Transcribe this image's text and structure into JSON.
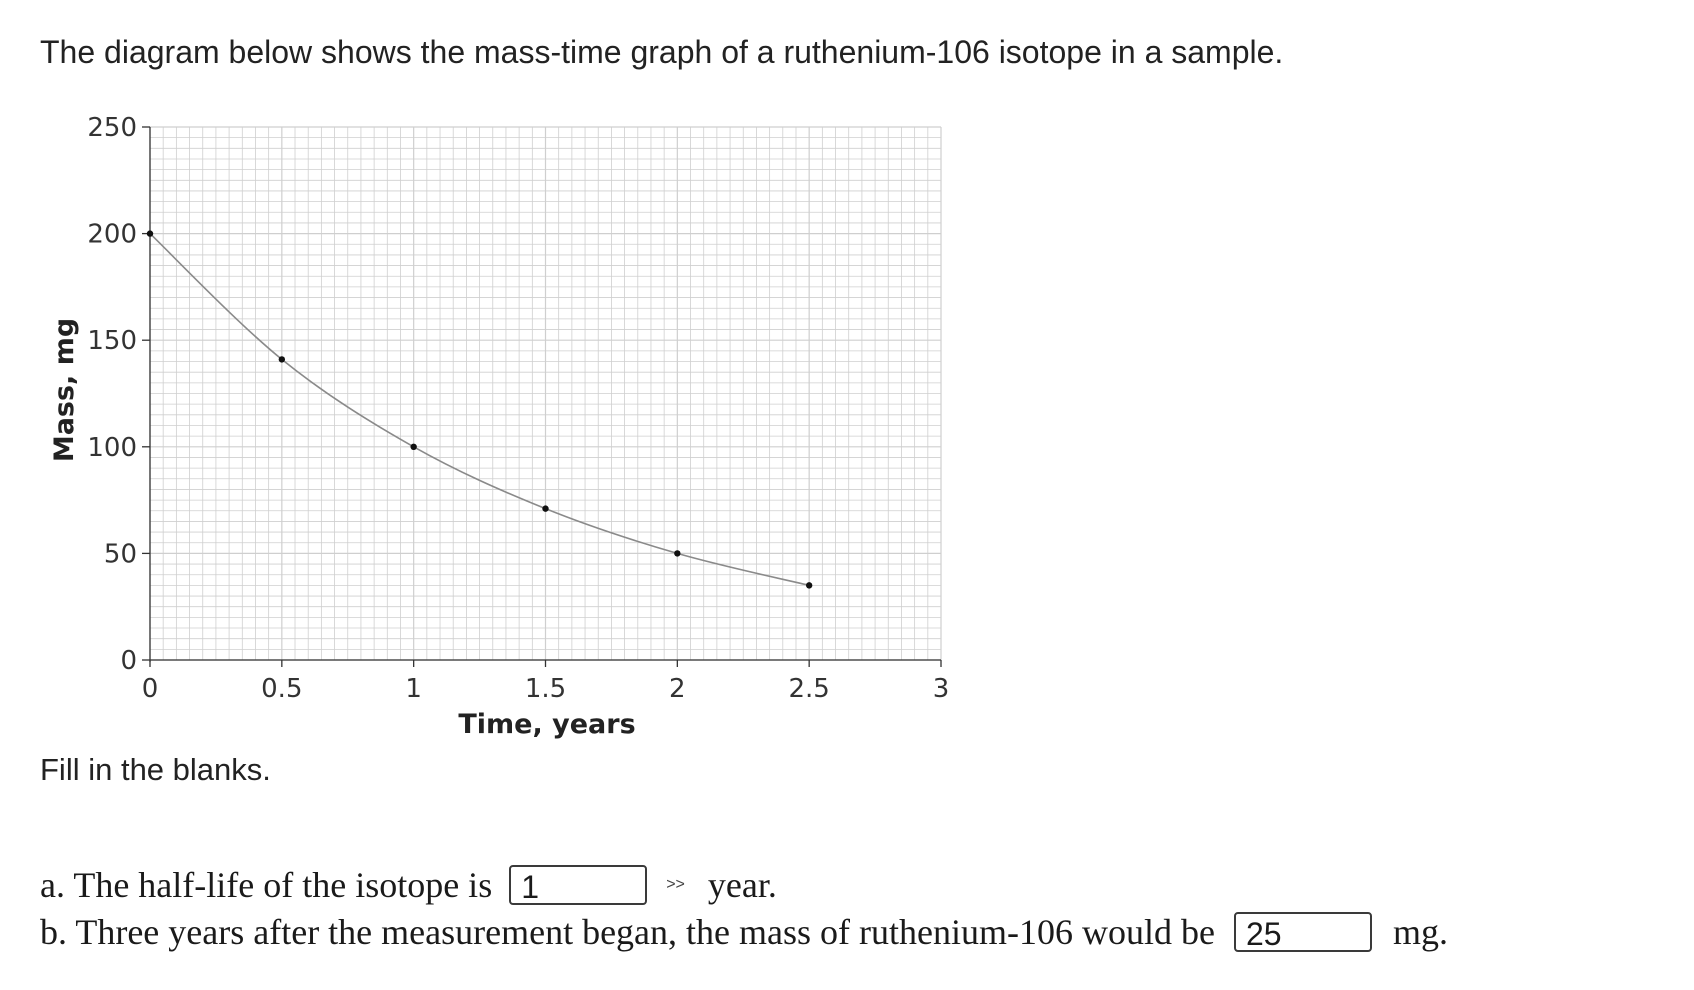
{
  "intro_text": "The diagram below shows the mass-time graph of a ruthenium-106 isotope in a sample.",
  "instructions": "Fill in the blanks.",
  "questions": {
    "a": {
      "prefix": "a. The half-life of the isotope is",
      "answer": "1",
      "unit": "year."
    },
    "b": {
      "prefix": "b. Three years after the measurement began, the mass of ruthenium-106 would be",
      "answer": "25",
      "unit": "mg."
    }
  },
  "icons": {
    "unit_select": "chevron-double-right-icon"
  },
  "chart_data": {
    "type": "line",
    "xlabel": "Time, years",
    "ylabel": "Mass, mg",
    "x_ticks": [
      0,
      0.5,
      1,
      1.5,
      2,
      2.5,
      3
    ],
    "x_tick_labels": [
      "0",
      "0.5",
      "1",
      "1.5",
      "2",
      "2.5",
      "3"
    ],
    "y_ticks": [
      0,
      50,
      100,
      150,
      200,
      250
    ],
    "y_tick_labels": [
      "0",
      "50",
      "100",
      "150",
      "200",
      "250"
    ],
    "xlim": [
      0,
      3
    ],
    "ylim": [
      0,
      250
    ],
    "grid": true,
    "series": [
      {
        "x": [
          0,
          0.5,
          1,
          1.5,
          2,
          2.5
        ],
        "y": [
          200,
          141,
          100,
          71,
          50,
          35
        ]
      }
    ],
    "colors": {
      "grid": "#cfcfcf",
      "curve": "#8a8a8a",
      "points": "#111111"
    }
  }
}
